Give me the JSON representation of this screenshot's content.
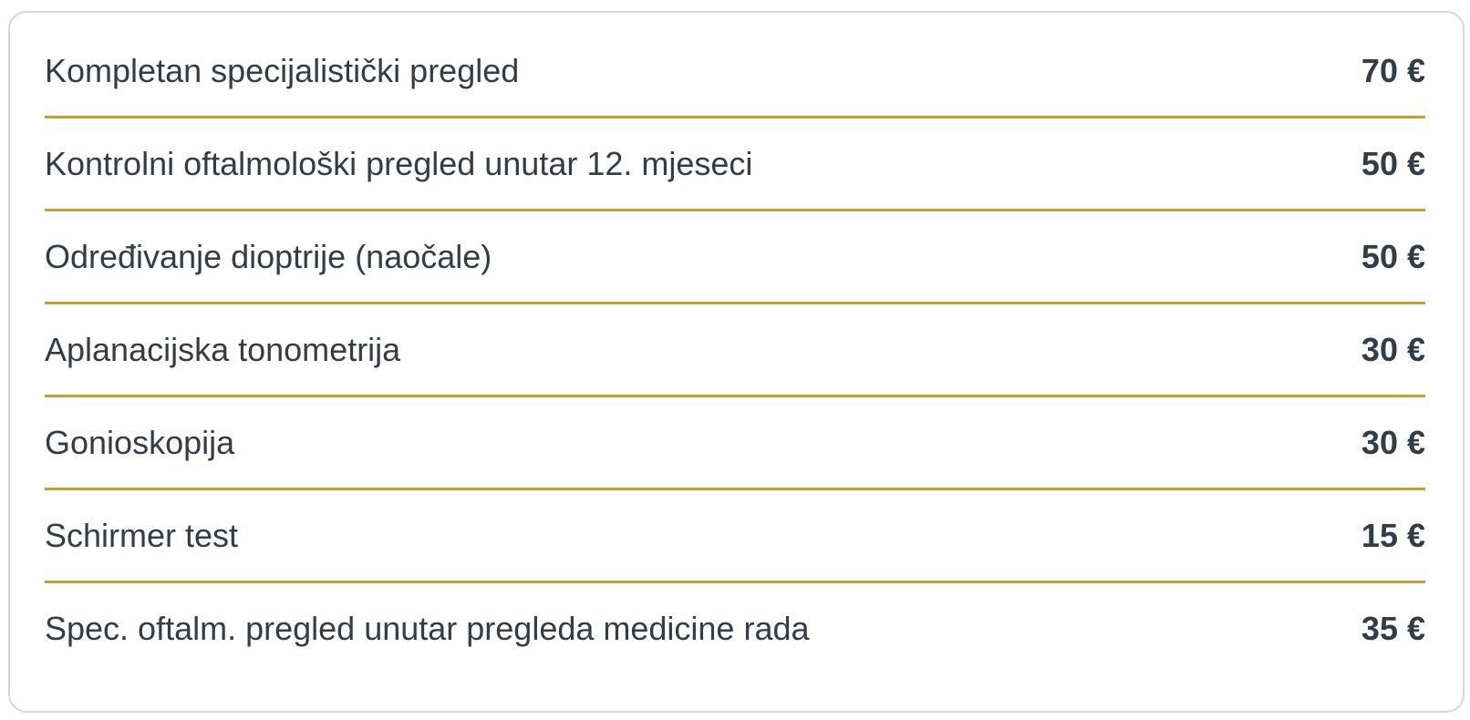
{
  "theme": {
    "background_color": "#ffffff",
    "card_border_color": "#d7d7d7",
    "divider_color": "#c2a133",
    "text_color": "#333d47"
  },
  "price_list": {
    "currency": "€",
    "rows": [
      {
        "label": "Kompletan specijalistički pregled",
        "price": "70 €"
      },
      {
        "label": "Kontrolni oftalmološki pregled unutar 12. mjeseci",
        "price": "50 €"
      },
      {
        "label": "Određivanje dioptrije (naočale)",
        "price": "50 €"
      },
      {
        "label": "Aplanacijska tonometrija",
        "price": "30 €"
      },
      {
        "label": "Gonioskopija",
        "price": "30 €"
      },
      {
        "label": "Schirmer test",
        "price": "15 €"
      },
      {
        "label": "Spec. oftalm. pregled unutar pregleda medicine rada",
        "price": "35 €"
      }
    ]
  }
}
